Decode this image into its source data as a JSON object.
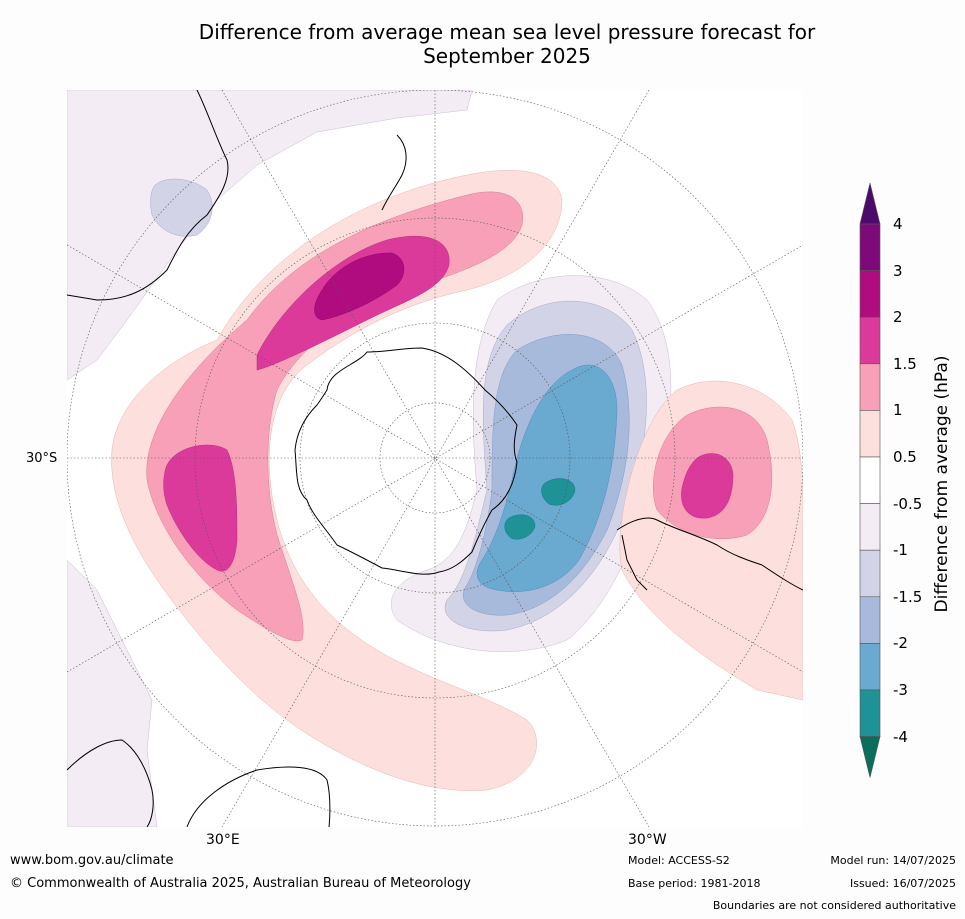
{
  "title_line1": "Difference from average mean sea level pressure forecast for",
  "title_line2": "September 2025",
  "map": {
    "graticule_labels": {
      "lat": "30°S",
      "lon_left": "30°E",
      "lon_right": "30°W"
    }
  },
  "legend": {
    "title": "Difference from average (hPa)",
    "ticks": [
      "4",
      "3",
      "2",
      "1.5",
      "1",
      "0.5",
      "-0.5",
      "-1",
      "-1.5",
      "-2",
      "-3",
      "-4"
    ],
    "colors": [
      "#4b0a6c",
      "#7e0a79",
      "#b10c7f",
      "#dc3a9a",
      "#f7a0b8",
      "#fde0dd",
      "#ffffff",
      "#f3ecf4",
      "#d2d3e6",
      "#a8badb",
      "#6aa9d0",
      "#1f9297",
      "#0a6e5c"
    ]
  },
  "footer": {
    "url": "www.bom.gov.au/climate",
    "copyright": "© Commonwealth of Australia 2025, Australian Bureau of Meteorology",
    "model": "Model: ACCESS-S2",
    "base_period": "Base period: 1981-2018",
    "model_run": "Model run: 14/07/2025",
    "issued": "Issued: 16/07/2025",
    "disclaimer": "Boundaries are not considered authoritative"
  }
}
